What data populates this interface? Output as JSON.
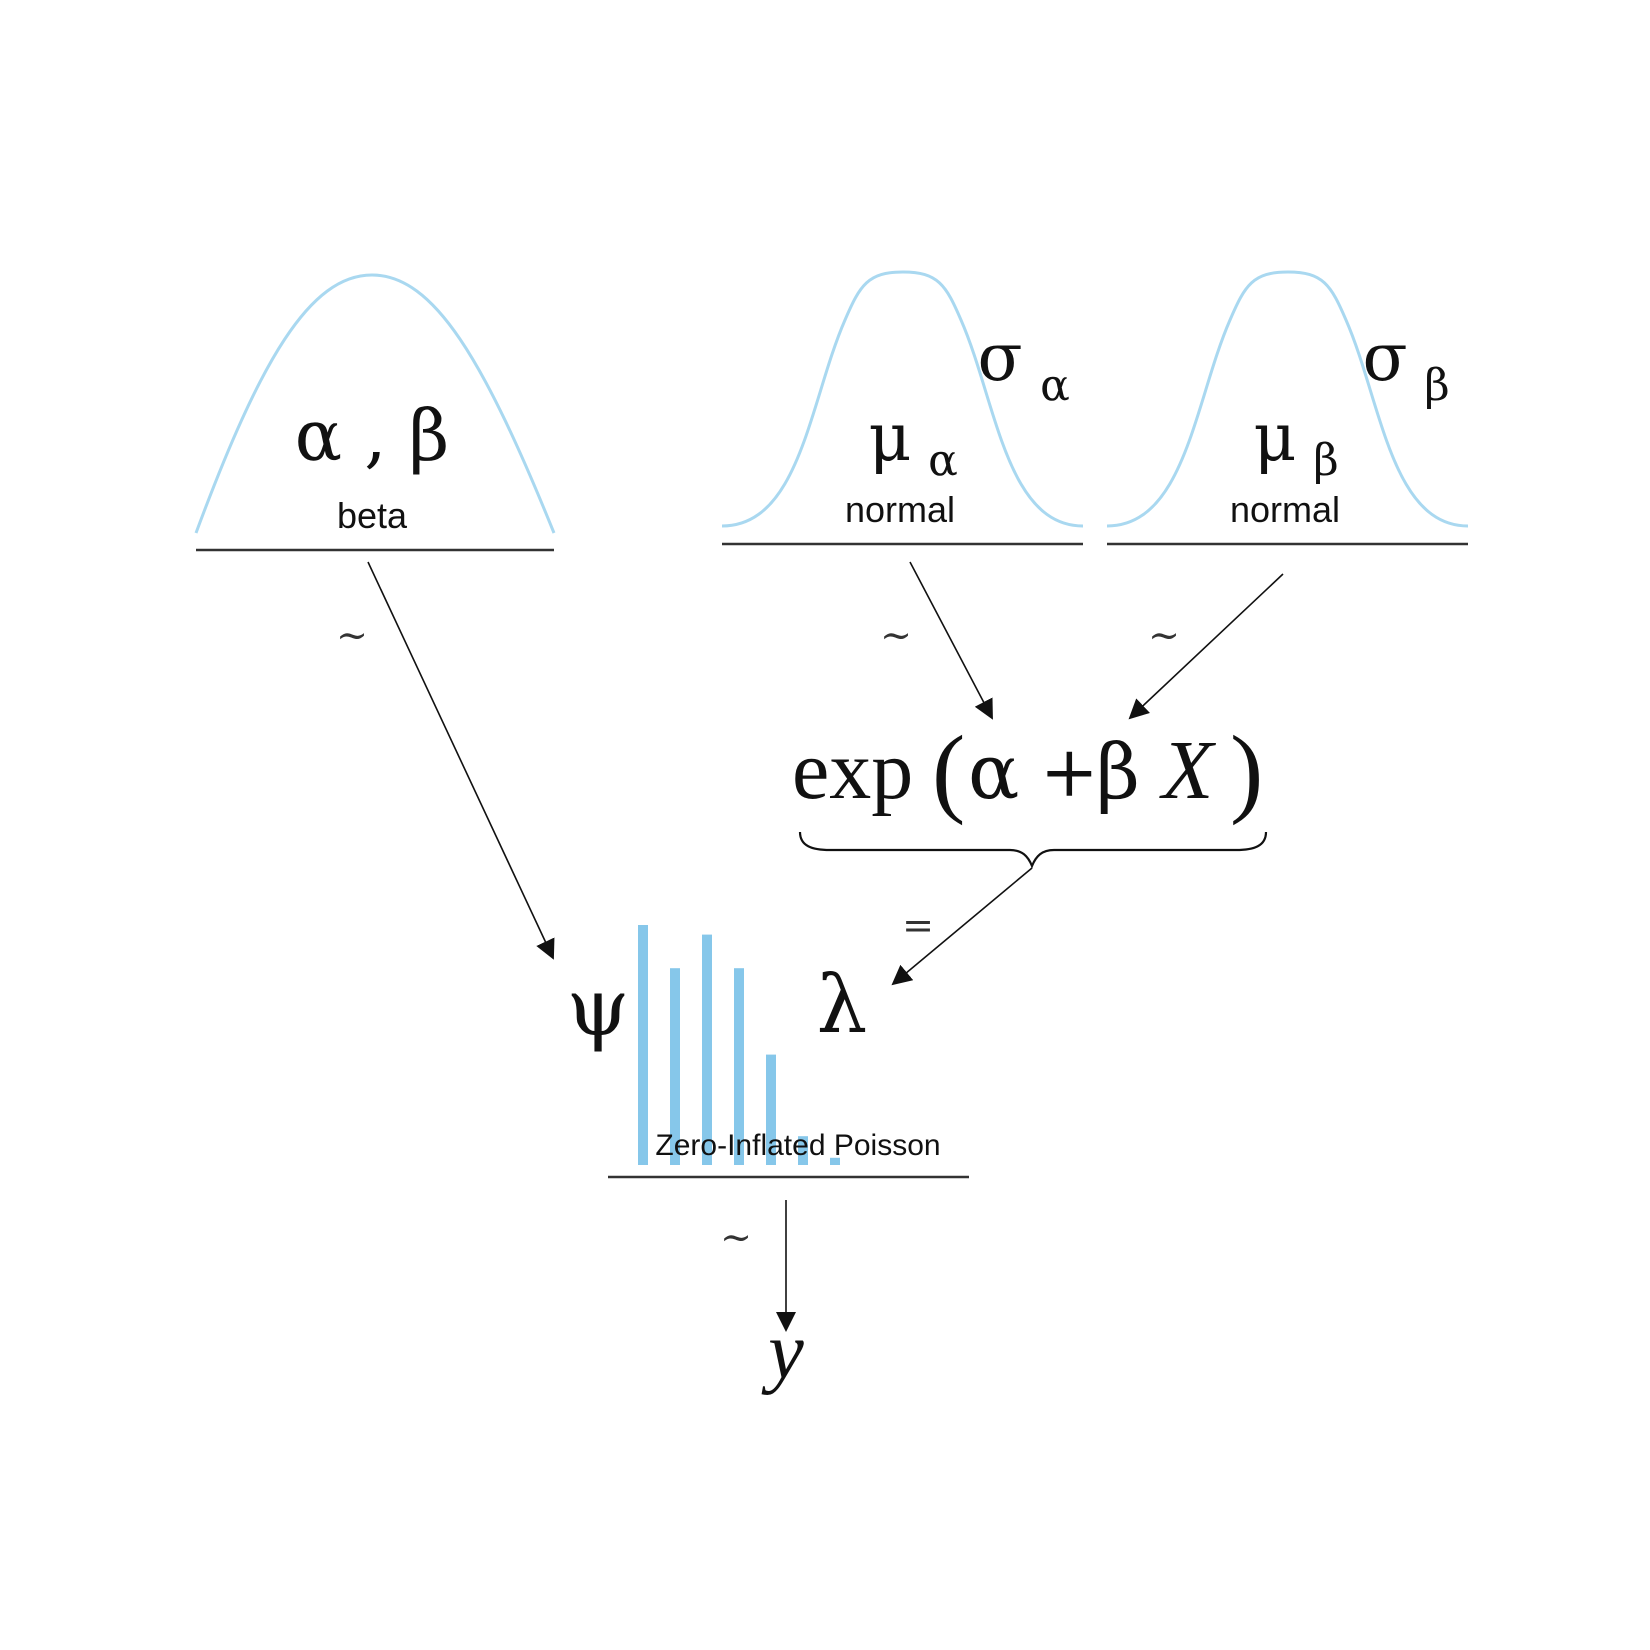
{
  "colors": {
    "curve": "#a9d8f0",
    "bars": "#86c7ea",
    "ink": "#111111"
  },
  "nodes": {
    "beta_prior": {
      "params": "α , β",
      "label": "beta"
    },
    "alpha_prior": {
      "mu": "μ",
      "mu_sub": "α",
      "sigma": "σ",
      "sigma_sub": "α",
      "label": "normal"
    },
    "beta_coef_prior": {
      "mu": "μ",
      "mu_sub": "β",
      "sigma": "σ",
      "sigma_sub": "β",
      "label": "normal"
    },
    "link": {
      "exp": "exp",
      "open": "(",
      "alpha": "α",
      "plus": "+",
      "beta": "β",
      "x": "X",
      "close": ")"
    },
    "likelihood": {
      "psi": "ψ",
      "lambda": "λ",
      "label": "Zero-Inflated Poisson",
      "bar_heights": [
        1.0,
        0.82,
        0.96,
        0.82,
        0.46,
        0.12,
        0.03
      ]
    },
    "outcome": {
      "y": "y"
    }
  },
  "edges": {
    "tilde": "~",
    "equals": "="
  }
}
